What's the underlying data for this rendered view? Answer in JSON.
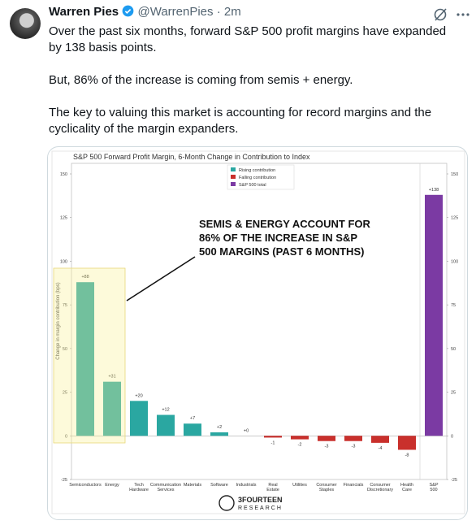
{
  "tweet": {
    "name": "Warren Pies",
    "handle": "@WarrenPies",
    "separator": "·",
    "time": "2m",
    "paragraphs": [
      "Over the past six months, forward S&P 500 profit margins have expanded by 138 basis points.",
      "But, 86% of the increase is coming from semis + energy.",
      "The key to valuing this market is accounting for record margins and the cyclicality of the margin expanders."
    ]
  },
  "chart_data": {
    "type": "bar",
    "title": "S&P 500 Forward Profit Margin, 6-Month Change in Contribution to Index",
    "y_label": "Change in margin contribution (bps)",
    "categories": [
      "Semiconductors",
      "Energy",
      "Tech Hardware",
      "Communication Services",
      "Materials",
      "Software",
      "Industrials",
      "Real Estate",
      "Utilities",
      "Consumer Staples",
      "Financials",
      "Consumer Discretionary",
      "Health Care",
      "S&P 500"
    ],
    "values": [
      88,
      31,
      20,
      12,
      7,
      2,
      0,
      -1,
      -2,
      -3,
      -3,
      -4,
      -8,
      138
    ],
    "value_labels": [
      "+88",
      "+31",
      "+20",
      "+12",
      "+7",
      "+2",
      "+0",
      "-1",
      "-2",
      "-3",
      "-3",
      "-4",
      "-8",
      "+138"
    ],
    "bar_colors": [
      "#2aa7a1",
      "#2aa7a1",
      "#2aa7a1",
      "#2aa7a1",
      "#2aa7a1",
      "#2aa7a1",
      "#2aa7a1",
      "#c9302c",
      "#c9302c",
      "#c9302c",
      "#c9302c",
      "#c9302c",
      "#c9302c",
      "#7b3aa3"
    ],
    "legend": [
      {
        "label": "Rising contribution",
        "color": "#2aa7a1"
      },
      {
        "label": "Falling contribution",
        "color": "#c9302c"
      },
      {
        "label": "S&P 500 total",
        "color": "#7b3aa3"
      }
    ],
    "ylim": [
      -25,
      150
    ],
    "yticks": [
      -25,
      0,
      25,
      50,
      75,
      100,
      125,
      150
    ],
    "annotation": [
      "SEMIS & ENERGY ACCOUNT FOR",
      "86% OF THE INCREASE IN S&P",
      "500 MARGINS (PAST 6 MONTHS)"
    ],
    "logo": [
      "3FOURTEEN",
      "RESEARCH"
    ]
  }
}
